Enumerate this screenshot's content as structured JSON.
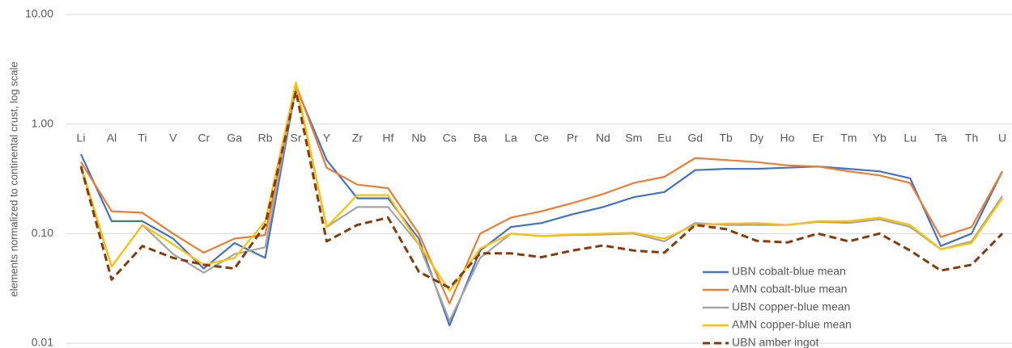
{
  "chart_data": {
    "type": "line",
    "y_label": "elements normalized to continental crust, log scale",
    "categories": [
      "Li",
      "Al",
      "Ti",
      "V",
      "Cr",
      "Ga",
      "Rb",
      "Sr",
      "Y",
      "Zr",
      "Hf",
      "Nb",
      "Cs",
      "Ba",
      "La",
      "Ce",
      "Pr",
      "Nd",
      "Sm",
      "Eu",
      "Gd",
      "Tb",
      "Dy",
      "Ho",
      "Er",
      "Tm",
      "Yb",
      "Lu",
      "Ta",
      "Th",
      "U"
    ],
    "series": [
      {
        "name": "UBN cobalt-blue mean",
        "color": "#4472c4",
        "dashed": false,
        "values": [
          0.53,
          0.13,
          0.13,
          0.09,
          0.048,
          0.082,
          0.06,
          2.2,
          0.47,
          0.21,
          0.21,
          0.09,
          0.0145,
          0.07,
          0.115,
          0.125,
          0.15,
          0.175,
          0.215,
          0.24,
          0.38,
          0.39,
          0.39,
          0.4,
          0.41,
          0.39,
          0.37,
          0.32,
          0.077,
          0.1,
          0.37
        ]
      },
      {
        "name": "AMN cobalt-blue mean",
        "color": "#ed7d31",
        "dashed": false,
        "values": [
          0.45,
          0.16,
          0.155,
          0.1,
          0.067,
          0.09,
          0.097,
          2.3,
          0.4,
          0.28,
          0.26,
          0.1,
          0.023,
          0.1,
          0.14,
          0.16,
          0.19,
          0.23,
          0.29,
          0.33,
          0.49,
          0.47,
          0.45,
          0.42,
          0.41,
          0.37,
          0.34,
          0.29,
          0.093,
          0.115,
          0.37
        ]
      },
      {
        "name": "UBN copper-blue mean",
        "color": "#a5a5a5",
        "dashed": false,
        "values": [
          0.4,
          0.05,
          0.12,
          0.065,
          0.044,
          0.065,
          0.075,
          2.3,
          0.115,
          0.175,
          0.175,
          0.08,
          0.016,
          0.06,
          0.1,
          0.095,
          0.097,
          0.098,
          0.1,
          0.085,
          0.125,
          0.12,
          0.12,
          0.12,
          0.128,
          0.125,
          0.135,
          0.115,
          0.072,
          0.085,
          0.22
        ]
      },
      {
        "name": "AMN copper-blue mean",
        "color": "#ffc000",
        "dashed": false,
        "values": [
          0.42,
          0.05,
          0.12,
          0.08,
          0.052,
          0.06,
          0.13,
          2.4,
          0.115,
          0.225,
          0.225,
          0.08,
          0.03,
          0.073,
          0.1,
          0.095,
          0.098,
          0.1,
          0.102,
          0.09,
          0.12,
          0.123,
          0.125,
          0.12,
          0.13,
          0.13,
          0.14,
          0.12,
          0.072,
          0.082,
          0.21
        ]
      },
      {
        "name": "UBN amber ingot",
        "color": "#843c0c",
        "dashed": true,
        "values": [
          0.41,
          0.038,
          0.077,
          0.06,
          0.052,
          0.048,
          0.12,
          2.0,
          0.085,
          0.12,
          0.14,
          0.045,
          0.032,
          0.066,
          0.066,
          0.061,
          0.07,
          0.078,
          0.07,
          0.067,
          0.12,
          0.11,
          0.086,
          0.083,
          0.1,
          0.085,
          0.1,
          0.07,
          0.046,
          0.052,
          0.1
        ]
      }
    ],
    "ylim": [
      0.01,
      10
    ],
    "log_y": true,
    "yticks": [
      0.01,
      {
        "value": 0.1,
        "label": "0.10"
      },
      {
        "value": 1,
        "label": "1.00"
      },
      {
        "value": 10,
        "label": "10.00"
      }
    ],
    "x_axis_crosses": 1,
    "grid": true,
    "legend": "lower right"
  }
}
